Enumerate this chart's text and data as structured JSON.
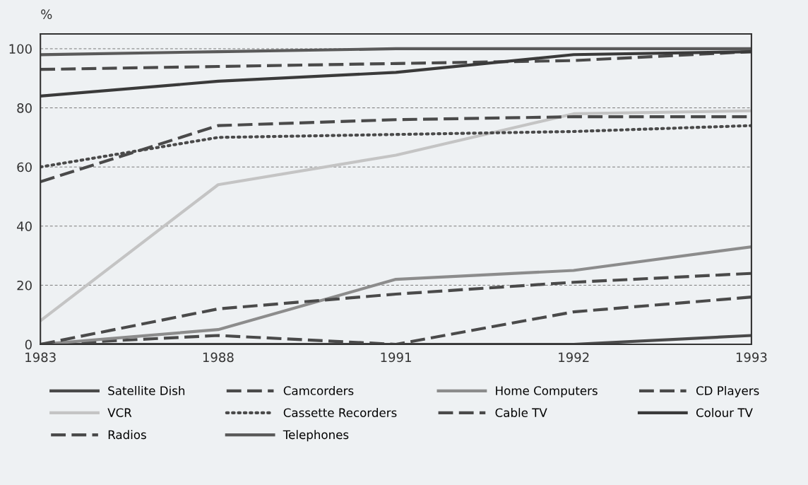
{
  "chart_data": {
    "type": "line",
    "ylabel": "%",
    "categories": [
      "1983",
      "1988",
      "1991",
      "1992",
      "1993"
    ],
    "ylim": [
      0,
      105
    ],
    "yticks": [
      0,
      20,
      40,
      60,
      80,
      100
    ],
    "grid": "y",
    "legend": "bottom",
    "marker": "none",
    "series": [
      {
        "name": "Satellite Dish",
        "color": "#4a4a4a",
        "line_style": "solid",
        "values": [
          0,
          0,
          0,
          0,
          3
        ]
      },
      {
        "name": "VCR",
        "color": "#c4c4c4",
        "line_style": "solid",
        "values": [
          8,
          54,
          64,
          78,
          79
        ]
      },
      {
        "name": "Radios",
        "color": "#4a4a4a",
        "line_style": "dashed",
        "values": [
          93,
          94,
          95,
          96,
          99
        ]
      },
      {
        "name": "Camcorders",
        "color": "#4a4a4a",
        "line_style": "dashed",
        "values": [
          0,
          3,
          0,
          11,
          16
        ]
      },
      {
        "name": "Cassette Recorders",
        "color": "#4a4a4a",
        "line_style": "dotted",
        "values": [
          60,
          70,
          71,
          72,
          74
        ]
      },
      {
        "name": "Telephones",
        "color": "#5a5a5a",
        "line_style": "solid",
        "values": [
          98,
          99,
          100,
          100,
          100
        ]
      },
      {
        "name": "Home Computers",
        "color": "#8c8c8c",
        "line_style": "solid",
        "values": [
          0,
          5,
          22,
          25,
          33
        ]
      },
      {
        "name": "Cable TV",
        "color": "#4a4a4a",
        "line_style": "dashed",
        "values": [
          55,
          74,
          76,
          77,
          77
        ]
      },
      {
        "name": "CD Players",
        "color": "#4a4a4a",
        "line_style": "dashed",
        "values": [
          0,
          12,
          17,
          21,
          24
        ]
      },
      {
        "name": "Colour TV",
        "color": "#3a3a3a",
        "line_style": "solid",
        "values": [
          84,
          89,
          92,
          98,
          99
        ]
      }
    ]
  }
}
